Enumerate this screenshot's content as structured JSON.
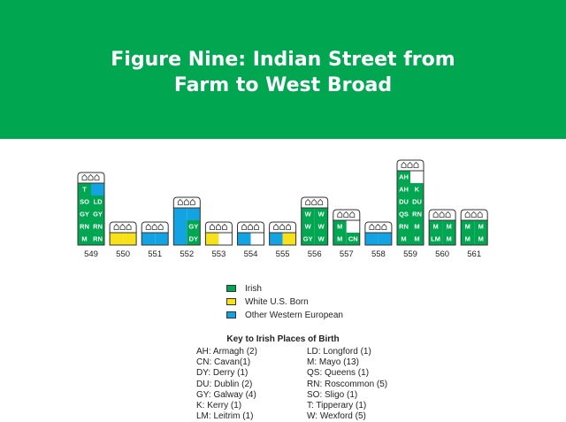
{
  "title_line1": "Figure Nine: Indian Street from",
  "title_line2": "Farm to West Broad",
  "colors": {
    "banner": "#00a650",
    "irish": "#00a650",
    "us": "#f7e11b",
    "euro": "#13a3e2"
  },
  "houses": [
    {
      "number": "549",
      "floors": 5,
      "cells": [
        [
          "green",
          "euro"
        ],
        [
          "green",
          "green"
        ],
        [
          "green",
          "green"
        ],
        [
          "green",
          "green"
        ],
        [
          "green",
          "green"
        ]
      ],
      "labels": [
        [
          "T",
          ""
        ],
        [
          "SO",
          "LD"
        ],
        [
          "GY",
          "GY"
        ],
        [
          "RN",
          "RN"
        ],
        [
          "M",
          "RN"
        ]
      ]
    },
    {
      "number": "550",
      "floors": 1,
      "cells": [
        [
          "us",
          "us"
        ]
      ],
      "labels": [
        [
          "",
          ""
        ]
      ]
    },
    {
      "number": "551",
      "floors": 1,
      "cells": [
        [
          "euro",
          "euro"
        ]
      ],
      "labels": [
        [
          "",
          ""
        ]
      ]
    },
    {
      "number": "552",
      "floors": 3,
      "cells": [
        [
          "euro",
          "euro"
        ],
        [
          "euro",
          "green"
        ],
        [
          "euro",
          "green"
        ]
      ],
      "labels": [
        [
          "",
          ""
        ],
        [
          "",
          "GY"
        ],
        [
          "",
          "DY"
        ]
      ]
    },
    {
      "number": "553",
      "floors": 1,
      "cells": [
        [
          "us",
          "white"
        ]
      ],
      "labels": [
        [
          "",
          ""
        ]
      ]
    },
    {
      "number": "554",
      "floors": 1,
      "cells": [
        [
          "euro",
          "white"
        ]
      ],
      "labels": [
        [
          "",
          ""
        ]
      ]
    },
    {
      "number": "555",
      "floors": 1,
      "cells": [
        [
          "euro",
          "us"
        ]
      ],
      "labels": [
        [
          "",
          ""
        ]
      ]
    },
    {
      "number": "556",
      "floors": 3,
      "cells": [
        [
          "green",
          "green"
        ],
        [
          "green",
          "green"
        ],
        [
          "green",
          "green"
        ]
      ],
      "labels": [
        [
          "W",
          "W"
        ],
        [
          "W",
          "W"
        ],
        [
          "GY",
          "W"
        ]
      ]
    },
    {
      "number": "557",
      "floors": 2,
      "cells": [
        [
          "green",
          "white"
        ],
        [
          "green",
          "green"
        ]
      ],
      "labels": [
        [
          "M",
          ""
        ],
        [
          "M",
          "CN"
        ]
      ]
    },
    {
      "number": "558",
      "floors": 1,
      "cells": [
        [
          "euro",
          "euro"
        ]
      ],
      "labels": [
        [
          "",
          ""
        ]
      ]
    },
    {
      "number": "559",
      "floors": 6,
      "cells": [
        [
          "green",
          "white"
        ],
        [
          "green",
          "green"
        ],
        [
          "green",
          "green"
        ],
        [
          "green",
          "green"
        ],
        [
          "green",
          "green"
        ],
        [
          "green",
          "green"
        ]
      ],
      "labels": [
        [
          "AH",
          ""
        ],
        [
          "AH",
          "K"
        ],
        [
          "DU",
          "DU"
        ],
        [
          "QS",
          "RN"
        ],
        [
          "RN",
          "M"
        ],
        [
          "M",
          "M"
        ]
      ]
    },
    {
      "number": "560",
      "floors": 2,
      "cells": [
        [
          "green",
          "green"
        ],
        [
          "green",
          "green"
        ]
      ],
      "labels": [
        [
          "M",
          "M"
        ],
        [
          "LM",
          "M"
        ]
      ]
    },
    {
      "number": "561",
      "floors": 2,
      "cells": [
        [
          "green",
          "green"
        ],
        [
          "green",
          "green"
        ]
      ],
      "labels": [
        [
          "M",
          "M"
        ],
        [
          "M",
          "M"
        ]
      ]
    }
  ],
  "legend": [
    {
      "label": "Irish",
      "color": "#00a650"
    },
    {
      "label": "White U.S. Born",
      "color": "#f7e11b"
    },
    {
      "label": "Other Western European",
      "color": "#13a3e2"
    }
  ],
  "key_title": "Key to Irish Places of Birth",
  "key_left": [
    "AH: Armagh (2)",
    "CN: Cavan(1)",
    "DY: Derry (1)",
    "DU: Dublin (2)",
    "GY: Galway (4)",
    "K: Kerry (1)",
    "LM: Leitrim (1)"
  ],
  "key_right": [
    "LD: Longford (1)",
    "M: Mayo (13)",
    "QS: Queens (1)",
    "RN: Roscommon (5)",
    "SO: Sligo (1)",
    "T: Tipperary (1)",
    "W: Wexford (5)"
  ]
}
